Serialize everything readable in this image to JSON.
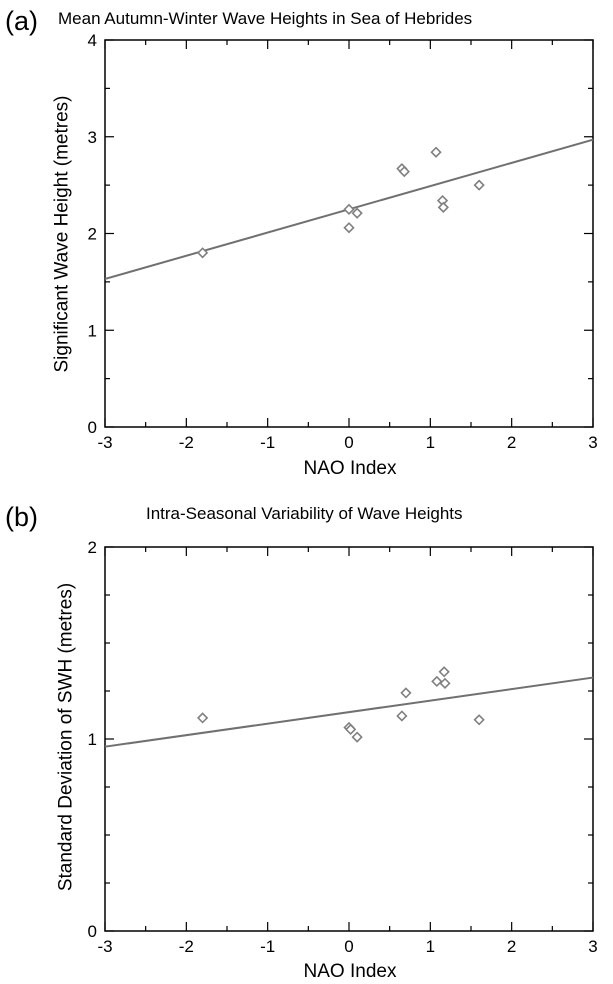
{
  "chart_data": [
    {
      "type": "scatter",
      "panel_label": "(a)",
      "title": "Mean Autumn-Winter Wave Heights in Sea of Hebrides",
      "xlabel": "NAO Index",
      "ylabel": "Significant Wave Height (metres)",
      "xlim": [
        -3,
        3
      ],
      "ylim": [
        0,
        4
      ],
      "x_ticks": [
        -3,
        -2,
        -1,
        0,
        1,
        2,
        3
      ],
      "y_ticks": [
        0,
        1,
        2,
        3,
        4
      ],
      "grid": false,
      "marker_color": "#808080",
      "line_color": "#707070",
      "points": [
        {
          "x": -1.8,
          "y": 1.8
        },
        {
          "x": 0.0,
          "y": 2.25
        },
        {
          "x": 0.0,
          "y": 2.06
        },
        {
          "x": 0.1,
          "y": 2.21
        },
        {
          "x": 0.65,
          "y": 2.67
        },
        {
          "x": 0.68,
          "y": 2.64
        },
        {
          "x": 1.07,
          "y": 2.84
        },
        {
          "x": 1.15,
          "y": 2.34
        },
        {
          "x": 1.16,
          "y": 2.27
        },
        {
          "x": 1.6,
          "y": 2.5
        }
      ],
      "trendline": {
        "x": [
          -3,
          3
        ],
        "y": [
          1.53,
          2.97
        ]
      }
    },
    {
      "type": "scatter",
      "panel_label": "(b)",
      "title": "Intra-Seasonal Variability of Wave Heights",
      "xlabel": "NAO Index",
      "ylabel": "Standard Deviation of SWH (metres)",
      "xlim": [
        -3,
        3
      ],
      "ylim": [
        0,
        2
      ],
      "x_ticks": [
        -3,
        -2,
        -1,
        0,
        1,
        2,
        3
      ],
      "y_ticks": [
        0,
        1,
        2
      ],
      "grid": false,
      "marker_color": "#808080",
      "line_color": "#707070",
      "points": [
        {
          "x": -1.8,
          "y": 1.11
        },
        {
          "x": 0.0,
          "y": 1.06
        },
        {
          "x": 0.02,
          "y": 1.05
        },
        {
          "x": 0.1,
          "y": 1.01
        },
        {
          "x": 0.65,
          "y": 1.12
        },
        {
          "x": 0.7,
          "y": 1.24
        },
        {
          "x": 1.08,
          "y": 1.3
        },
        {
          "x": 1.17,
          "y": 1.35
        },
        {
          "x": 1.18,
          "y": 1.29
        },
        {
          "x": 1.6,
          "y": 1.1
        }
      ],
      "trendline": {
        "x": [
          -3,
          3
        ],
        "y": [
          0.96,
          1.32
        ]
      }
    }
  ]
}
